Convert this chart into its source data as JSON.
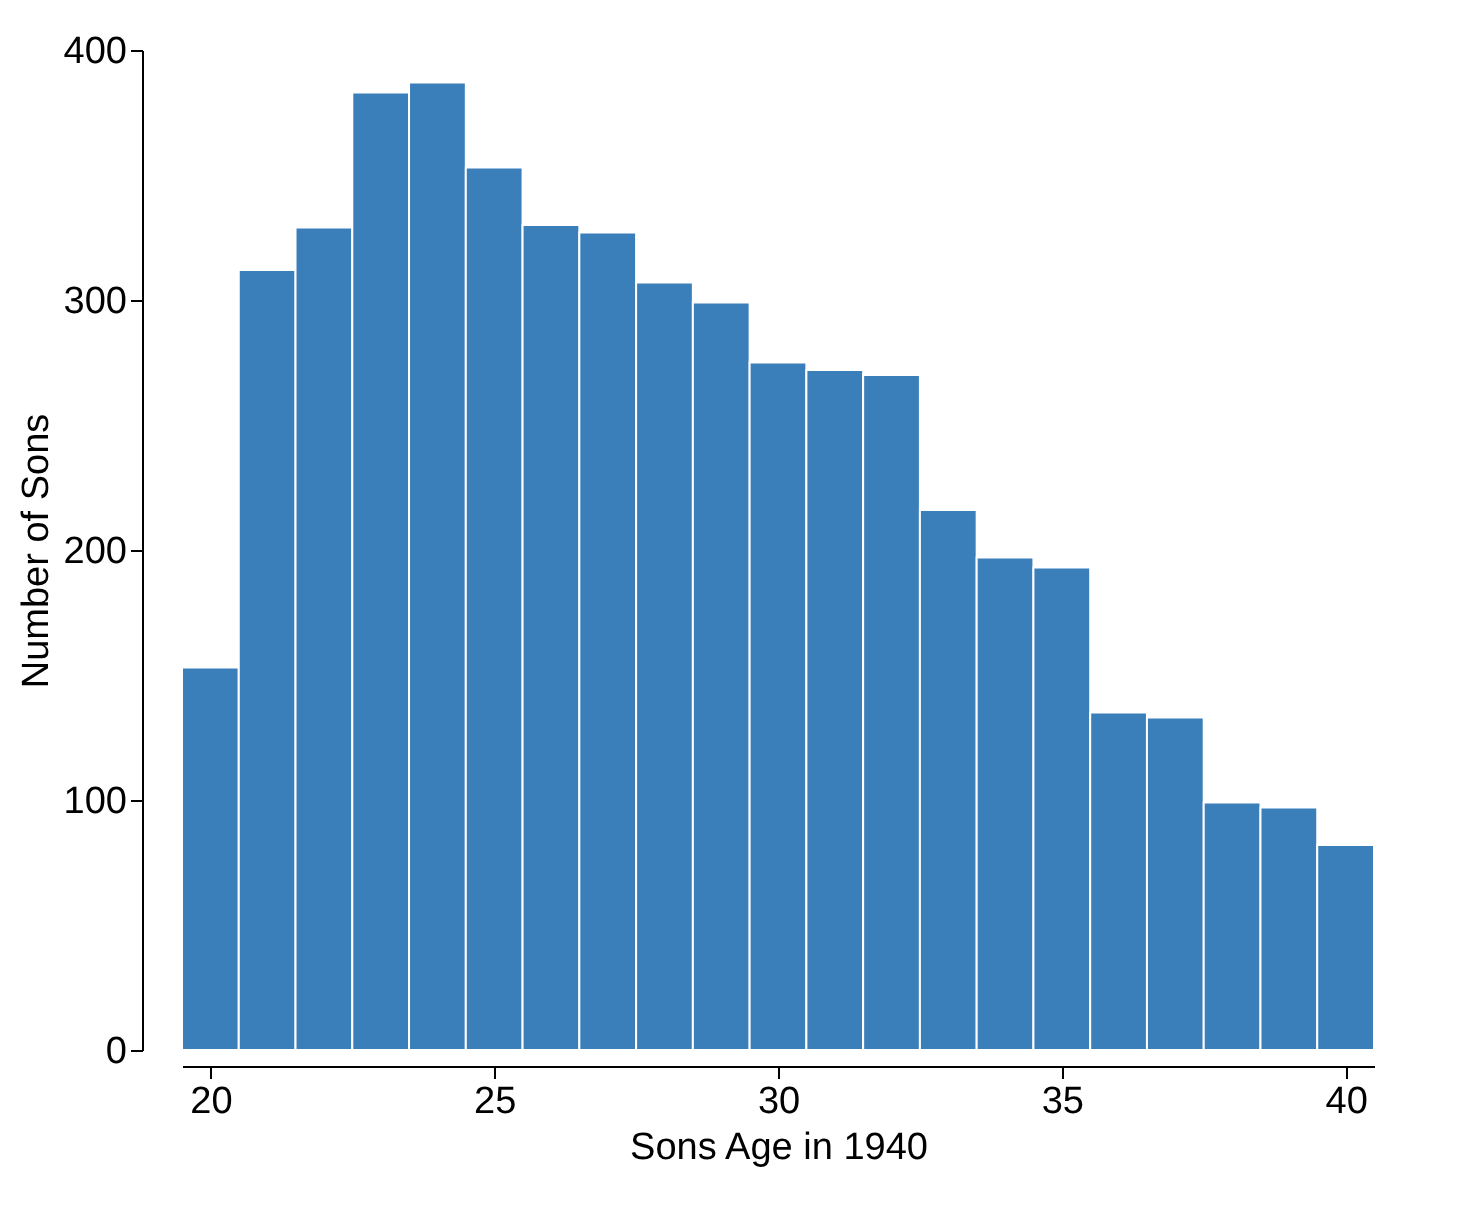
{
  "chart_data": {
    "type": "histogram",
    "xlabel": "Sons Age in 1940",
    "ylabel": "Number of Sons",
    "bins": [
      19.5,
      20.5,
      21.5,
      22.5,
      23.5,
      24.5,
      25.5,
      26.5,
      27.5,
      28.5,
      29.5,
      30.5,
      31.5,
      32.5,
      33.5,
      34.5,
      35.5,
      36.5,
      37.5,
      38.5,
      39.5,
      40.5
    ],
    "values": [
      153,
      312,
      329,
      383,
      387,
      353,
      330,
      327,
      307,
      299,
      275,
      272,
      270,
      216,
      197,
      193,
      135,
      133,
      99,
      97,
      82
    ],
    "color": "#3a7fba",
    "xlim": [
      19.5,
      40.5
    ],
    "xticks": [
      20,
      25,
      30,
      35,
      40
    ],
    "ylim": [
      0,
      400
    ],
    "yticks": [
      0,
      100,
      200,
      300,
      400
    ],
    "grid": false
  }
}
